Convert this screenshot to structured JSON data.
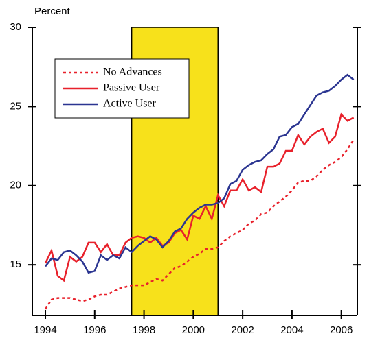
{
  "chart_data": {
    "type": "line",
    "y_label": "Percent",
    "xlim": [
      1993.47,
      2006.65
    ],
    "ylim": [
      11.8,
      30
    ],
    "xticks": [
      1994,
      1996,
      1998,
      2000,
      2002,
      2004,
      2006
    ],
    "yticks": [
      15,
      20,
      25,
      30
    ],
    "shaded_region": [
      1997.5,
      2001
    ],
    "shaded_color": "#f7e11b",
    "legend": "upper left",
    "x": [
      1994,
      1994.25,
      1994.5,
      1994.75,
      1995,
      1995.25,
      1995.5,
      1995.75,
      1996,
      1996.25,
      1996.5,
      1996.75,
      1997,
      1997.25,
      1997.5,
      1997.75,
      1998,
      1998.25,
      1998.5,
      1998.75,
      1999,
      1999.25,
      1999.5,
      1999.75,
      2000,
      2000.25,
      2000.5,
      2000.75,
      2001,
      2001.25,
      2001.5,
      2001.75,
      2002,
      2002.25,
      2002.5,
      2002.75,
      2003,
      2003.25,
      2003.5,
      2003.75,
      2004,
      2004.25,
      2004.5,
      2004.75,
      2005,
      2005.25,
      2005.5,
      2005.75,
      2006,
      2006.25,
      2006.5
    ],
    "series": [
      {
        "name": "No Advances",
        "color": "#e8212b",
        "style": "dotted",
        "values": [
          12.2,
          12.8,
          12.9,
          12.9,
          12.9,
          12.8,
          12.7,
          12.8,
          13.0,
          13.1,
          13.1,
          13.3,
          13.5,
          13.6,
          13.7,
          13.7,
          13.7,
          13.9,
          14.1,
          14.0,
          14.4,
          14.8,
          14.9,
          15.2,
          15.5,
          15.7,
          16.0,
          16.0,
          16.1,
          16.5,
          16.8,
          17.0,
          17.2,
          17.6,
          17.8,
          18.2,
          18.3,
          18.7,
          19.0,
          19.3,
          19.7,
          20.2,
          20.3,
          20.3,
          20.6,
          21.0,
          21.3,
          21.5,
          21.8,
          22.3,
          22.9
        ]
      },
      {
        "name": "Passive User",
        "color": "#e8212b",
        "style": "solid",
        "values": [
          15.1,
          15.9,
          14.3,
          14.0,
          15.5,
          15.2,
          15.5,
          16.4,
          16.4,
          15.8,
          16.3,
          15.6,
          15.6,
          16.4,
          16.7,
          16.8,
          16.7,
          16.4,
          16.7,
          16.2,
          16.4,
          17.0,
          17.2,
          16.6,
          18.1,
          17.9,
          18.7,
          17.9,
          19.4,
          18.7,
          19.7,
          19.7,
          20.4,
          19.7,
          19.9,
          19.6,
          21.2,
          21.2,
          21.4,
          22.2,
          22.2,
          23.2,
          22.6,
          23.1,
          23.4,
          23.6,
          22.7,
          23.1,
          24.5,
          24.1,
          24.3
        ]
      },
      {
        "name": "Active User",
        "color": "#2b3591",
        "style": "solid",
        "values": [
          14.9,
          15.4,
          15.3,
          15.8,
          15.9,
          15.6,
          15.2,
          14.5,
          14.6,
          15.6,
          15.3,
          15.6,
          15.4,
          16.1,
          15.8,
          16.2,
          16.5,
          16.8,
          16.6,
          16.1,
          16.5,
          17.1,
          17.3,
          17.9,
          18.3,
          18.6,
          18.8,
          18.8,
          18.9,
          19.2,
          20.1,
          20.3,
          21.0,
          21.3,
          21.5,
          21.6,
          22.0,
          22.3,
          23.1,
          23.2,
          23.7,
          23.9,
          24.5,
          25.1,
          25.7,
          25.9,
          26.0,
          26.3,
          26.7,
          27.0,
          26.7
        ]
      }
    ]
  }
}
